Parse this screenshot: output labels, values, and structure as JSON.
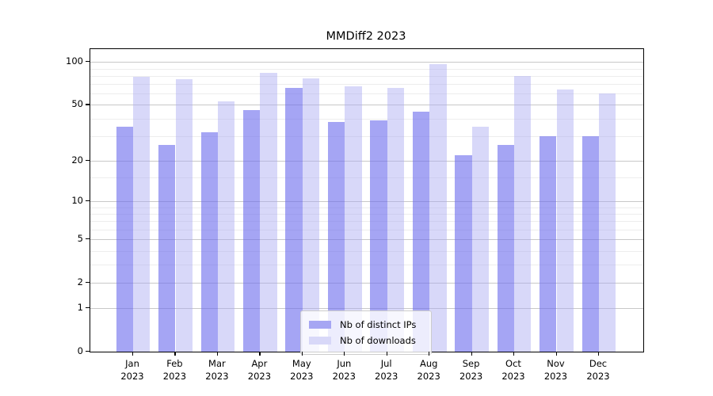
{
  "title": "MMDiff2 2023",
  "colors": {
    "bar_ips": "rgba(110,110,238,0.62)",
    "bar_downloads": "rgba(168,168,242,0.45)",
    "bar_ips_solid": "#a6a6f3",
    "bar_downloads_solid": "#d8d8f8",
    "grid_major": "#c8c8c8",
    "grid_minor": "#ededed",
    "axis": "#000000",
    "background": "#ffffff"
  },
  "legend": {
    "items": [
      {
        "label": "Nb of distinct IPs",
        "series": "ips"
      },
      {
        "label": "Nb of downloads",
        "series": "downloads"
      }
    ]
  },
  "chart_data": {
    "type": "bar",
    "title": "MMDiff2 2023",
    "categories": [
      "Jan 2023",
      "Feb 2023",
      "Mar 2023",
      "Apr 2023",
      "May 2023",
      "Jun 2023",
      "Jul 2023",
      "Aug 2023",
      "Sep 2023",
      "Oct 2023",
      "Nov 2023",
      "Dec 2023"
    ],
    "series": [
      {
        "name": "Nb of distinct IPs",
        "values": [
          35,
          26,
          32,
          46,
          66,
          38,
          39,
          45,
          22,
          26,
          30,
          30
        ]
      },
      {
        "name": "Nb of downloads",
        "values": [
          79,
          76,
          53,
          84,
          77,
          68,
          66,
          97,
          35,
          80,
          64,
          60
        ]
      }
    ],
    "xlabel": "",
    "ylabel": "",
    "yscale": "log10(value+1)",
    "ylim": [
      0,
      123
    ],
    "yticks": [
      0,
      1,
      2,
      5,
      10,
      20,
      50,
      100
    ],
    "yticks_minor": [
      3,
      4,
      6,
      7,
      8,
      9,
      15,
      30,
      40,
      60,
      70,
      80,
      90
    ],
    "grid": true,
    "legend_position": "lower center"
  }
}
